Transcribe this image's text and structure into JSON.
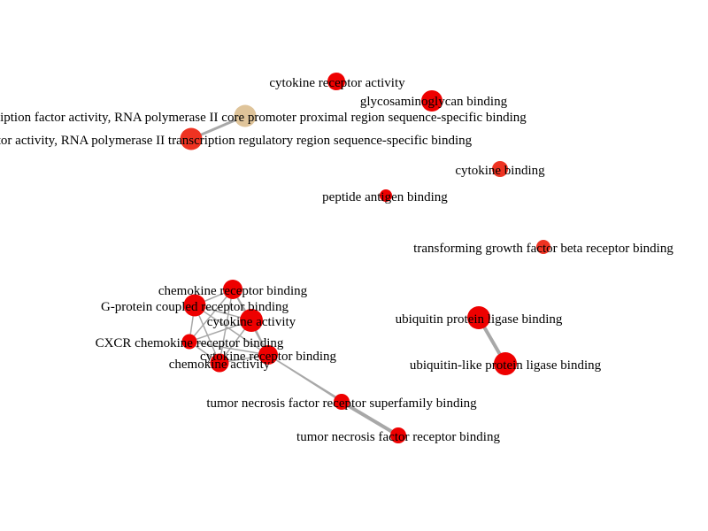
{
  "colors": {
    "node_red": "#ee0000",
    "node_tan": "#dfc49a",
    "node_orangered": "#ee3322",
    "edge": "#a8a8a8"
  },
  "nodes": [
    {
      "id": "n1",
      "name": "node-cytokine-receptor-activity",
      "label": "cytokine receptor activity",
      "color": "node_red"
    },
    {
      "id": "n2",
      "name": "node-glycosaminoglycan-binding",
      "label": "glycosaminoglycan binding",
      "color": "node_red"
    },
    {
      "id": "n3",
      "name": "node-tf-activity-core-promoter",
      "label": "transcription factor activity, RNA polymerase II core promoter proximal region sequence-specific binding",
      "color": "node_tan"
    },
    {
      "id": "n4",
      "name": "node-tf-activity-regulatory-region",
      "label": "transcription factor activity, RNA polymerase II transcription regulatory region sequence-specific binding",
      "color": "node_orangered"
    },
    {
      "id": "n5",
      "name": "node-cytokine-binding",
      "label": "cytokine binding",
      "color": "node_orangered"
    },
    {
      "id": "n6",
      "name": "node-peptide-antigen-binding",
      "label": "peptide antigen binding",
      "color": "node_red"
    },
    {
      "id": "n7",
      "name": "node-tgf-beta-receptor-binding",
      "label": "transforming growth factor beta receptor binding",
      "color": "node_orangered"
    },
    {
      "id": "n8",
      "name": "node-chemokine-receptor-binding",
      "label": "chemokine receptor binding",
      "color": "node_red"
    },
    {
      "id": "n9",
      "name": "node-g-protein-coupled-receptor-binding",
      "label": "G-protein coupled receptor binding",
      "color": "node_red"
    },
    {
      "id": "n10",
      "name": "node-cytokine-activity",
      "label": "cytokine activity",
      "color": "node_red"
    },
    {
      "id": "n11",
      "name": "node-cxcr-chemokine-receptor-binding",
      "label": "CXCR chemokine receptor binding",
      "color": "node_red"
    },
    {
      "id": "n12",
      "name": "node-cytokine-receptor-binding",
      "label": "cytokine receptor binding",
      "color": "node_red"
    },
    {
      "id": "n13",
      "name": "node-chemokine-activity",
      "label": "chemokine activity",
      "color": "node_red"
    },
    {
      "id": "n14",
      "name": "node-tnf-receptor-superfamily-binding",
      "label": "tumor necrosis factor receptor superfamily binding",
      "color": "node_red"
    },
    {
      "id": "n15",
      "name": "node-tnf-receptor-binding",
      "label": "tumor necrosis factor receptor binding",
      "color": "node_red"
    },
    {
      "id": "n16",
      "name": "node-ubiquitin-protein-ligase-binding",
      "label": "ubiquitin protein ligase binding",
      "color": "node_red"
    },
    {
      "id": "n17",
      "name": "node-ubiquitin-like-protein-ligase-binding",
      "label": "ubiquitin-like protein ligase binding",
      "color": "node_red"
    }
  ],
  "edges": [
    {
      "source": "n3",
      "target": "n4"
    },
    {
      "source": "n16",
      "target": "n17"
    },
    {
      "source": "n14",
      "target": "n15"
    },
    {
      "source": "n12",
      "target": "n14"
    },
    {
      "source": "n12",
      "target": "n15"
    },
    {
      "source": "n8",
      "target": "n9"
    },
    {
      "source": "n8",
      "target": "n10"
    },
    {
      "source": "n8",
      "target": "n11"
    },
    {
      "source": "n8",
      "target": "n12"
    },
    {
      "source": "n8",
      "target": "n13"
    },
    {
      "source": "n9",
      "target": "n10"
    },
    {
      "source": "n9",
      "target": "n11"
    },
    {
      "source": "n9",
      "target": "n12"
    },
    {
      "source": "n9",
      "target": "n13"
    },
    {
      "source": "n10",
      "target": "n11"
    },
    {
      "source": "n10",
      "target": "n12"
    },
    {
      "source": "n10",
      "target": "n13"
    },
    {
      "source": "n11",
      "target": "n12"
    },
    {
      "source": "n11",
      "target": "n13"
    },
    {
      "source": "n12",
      "target": "n13"
    }
  ]
}
